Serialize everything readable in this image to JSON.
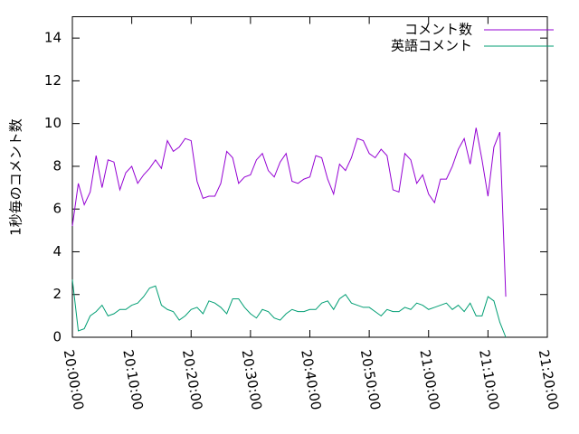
{
  "chart_data": {
    "type": "line",
    "y_label": "1秒毎のコメント数",
    "x": [
      "20:00:00",
      "20:01:00",
      "20:02:00",
      "20:03:00",
      "20:04:00",
      "20:05:00",
      "20:06:00",
      "20:07:00",
      "20:08:00",
      "20:09:00",
      "20:10:00",
      "20:11:00",
      "20:12:00",
      "20:13:00",
      "20:14:00",
      "20:15:00",
      "20:16:00",
      "20:17:00",
      "20:18:00",
      "20:19:00",
      "20:20:00",
      "20:21:00",
      "20:22:00",
      "20:23:00",
      "20:24:00",
      "20:25:00",
      "20:26:00",
      "20:27:00",
      "20:28:00",
      "20:29:00",
      "20:30:00",
      "20:31:00",
      "20:32:00",
      "20:33:00",
      "20:34:00",
      "20:35:00",
      "20:36:00",
      "20:37:00",
      "20:38:00",
      "20:39:00",
      "20:40:00",
      "20:41:00",
      "20:42:00",
      "20:43:00",
      "20:44:00",
      "20:45:00",
      "20:46:00",
      "20:47:00",
      "20:48:00",
      "20:49:00",
      "20:50:00",
      "20:51:00",
      "20:52:00",
      "20:53:00",
      "20:54:00",
      "20:55:00",
      "20:56:00",
      "20:57:00",
      "20:58:00",
      "20:59:00",
      "21:00:00",
      "21:01:00",
      "21:02:00",
      "21:03:00",
      "21:04:00",
      "21:05:00",
      "21:06:00",
      "21:07:00",
      "21:08:00",
      "21:09:00",
      "21:10:00",
      "21:11:00",
      "21:12:00",
      "21:13:00"
    ],
    "series": [
      {
        "name": "コメント数",
        "color": "#9400d3",
        "values": [
          5.2,
          7.2,
          6.2,
          6.8,
          8.5,
          7.0,
          8.3,
          8.2,
          6.9,
          7.7,
          8.0,
          7.2,
          7.6,
          7.9,
          8.3,
          7.9,
          9.2,
          8.7,
          8.9,
          9.3,
          9.2,
          7.3,
          6.5,
          6.6,
          6.6,
          7.2,
          8.7,
          8.4,
          7.2,
          7.5,
          7.6,
          8.3,
          8.6,
          7.8,
          7.5,
          8.2,
          8.6,
          7.3,
          7.2,
          7.4,
          7.5,
          8.5,
          8.4,
          7.4,
          6.7,
          8.1,
          7.8,
          8.4,
          9.3,
          9.2,
          8.6,
          8.4,
          8.8,
          8.5,
          6.9,
          6.8,
          8.6,
          8.3,
          7.2,
          7.6,
          6.7,
          6.3,
          7.4,
          7.4,
          8.0,
          8.8,
          9.3,
          8.1,
          9.8,
          8.3,
          6.6,
          8.9,
          9.6,
          1.9
        ]
      },
      {
        "name": "英語コメント",
        "color": "#009e73",
        "values": [
          2.7,
          0.3,
          0.4,
          1.0,
          1.2,
          1.5,
          1.0,
          1.1,
          1.3,
          1.3,
          1.5,
          1.6,
          1.9,
          2.3,
          2.4,
          1.5,
          1.3,
          1.2,
          0.8,
          1.0,
          1.3,
          1.4,
          1.1,
          1.7,
          1.6,
          1.4,
          1.1,
          1.8,
          1.8,
          1.4,
          1.1,
          0.9,
          1.3,
          1.2,
          0.9,
          0.8,
          1.1,
          1.3,
          1.2,
          1.2,
          1.3,
          1.3,
          1.6,
          1.7,
          1.3,
          1.8,
          2.0,
          1.6,
          1.5,
          1.4,
          1.4,
          1.2,
          1.0,
          1.3,
          1.2,
          1.2,
          1.4,
          1.3,
          1.6,
          1.5,
          1.3,
          1.4,
          1.5,
          1.6,
          1.3,
          1.5,
          1.2,
          1.6,
          1.0,
          1.0,
          1.9,
          1.7,
          0.7,
          0.0
        ]
      }
    ],
    "xlim": [
      "20:00:00",
      "21:20:00"
    ],
    "xticks": [
      "20:00:00",
      "20:10:00",
      "20:20:00",
      "20:30:00",
      "20:40:00",
      "20:50:00",
      "21:00:00",
      "21:10:00",
      "21:20:00"
    ],
    "ylim": [
      0,
      15
    ],
    "yticks": [
      0,
      2,
      4,
      6,
      8,
      10,
      12,
      14
    ],
    "legend": "top-right"
  }
}
